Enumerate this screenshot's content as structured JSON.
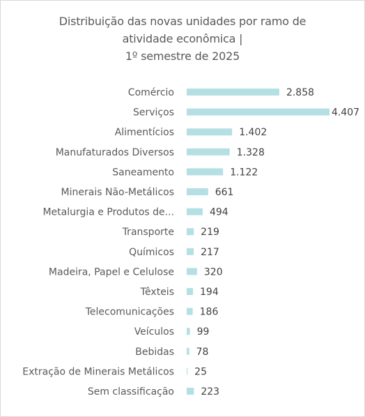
{
  "chart_data": {
    "type": "bar",
    "orientation": "horizontal",
    "title_lines": [
      "Distribuição das novas unidades por ramo de",
      "atividade econômica |",
      "1º semestre de 2025"
    ],
    "categories": [
      "Comércio",
      "Serviços",
      "Alimentícios",
      "Manufaturados Diversos",
      "Saneamento",
      "Minerais Não-Metálicos",
      "Metalurgia e Produtos de...",
      "Transporte",
      "Químicos",
      "Madeira, Papel e Celulose",
      "Têxteis",
      "Telecomunicações",
      "Veículos",
      "Bebidas",
      "Extração de Minerais Metálicos",
      "Sem classificação"
    ],
    "values": [
      2858,
      4407,
      1402,
      1328,
      1122,
      661,
      494,
      219,
      217,
      320,
      194,
      186,
      99,
      78,
      25,
      223
    ],
    "value_labels": [
      "2.858",
      "4.407",
      "1.402",
      "1.328",
      "1.122",
      "661",
      "494",
      "219",
      "217",
      "320",
      "194",
      "186",
      "99",
      "78",
      "25",
      "223"
    ],
    "xlim": [
      0,
      4407
    ],
    "grid": false,
    "legend": "none",
    "bar_color": "#b4dfe3",
    "text_color": "#595959"
  }
}
